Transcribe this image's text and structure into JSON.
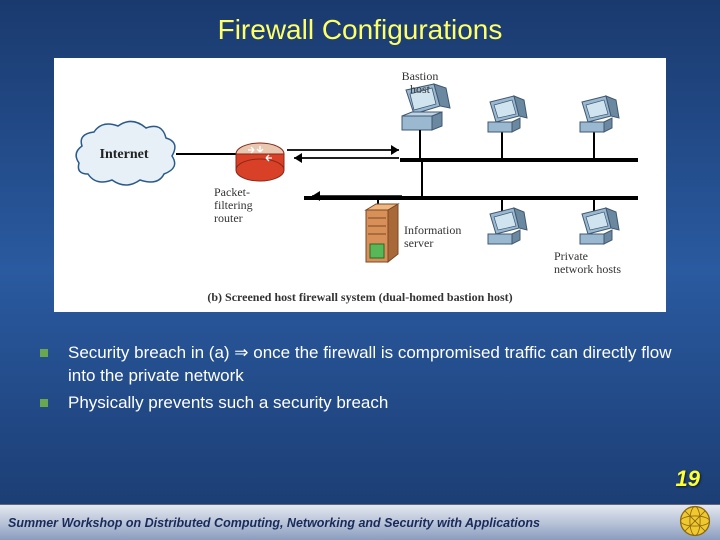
{
  "title": "Firewall Configurations",
  "diagram": {
    "caption": "(b) Screened host firewall system (dual-homed bastion host)",
    "labels": {
      "internet": "Internet",
      "router": "Packet-\nfiltering\nrouter",
      "bastion": "Bastion\nhost",
      "infoServer": "Information\nserver",
      "privateHosts": "Private\nnetwork hosts"
    },
    "colors": {
      "cloud": "#d8e8f0",
      "router": "#d84028",
      "server": "#c8a880",
      "host": "#8aa8c0",
      "hostDark": "#506880"
    }
  },
  "bullets": [
    "Security breach in (a) ⇒ once the firewall is compromised traffic can directly flow into the private network",
    "Physically prevents such a security breach"
  ],
  "pageNumber": "19",
  "footer": "Summer Workshop on Distributed Computing, Networking and Security with Applications"
}
